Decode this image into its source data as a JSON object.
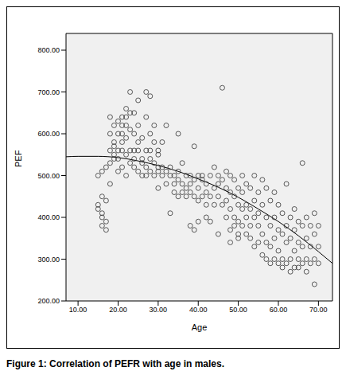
{
  "chart_data": {
    "type": "scatter",
    "title": "Figure 1: Correlation of PEFR with age in males.",
    "x_label": "Age",
    "y_label": "PEF",
    "xlim": [
      7,
      73.5
    ],
    "ylim": [
      200,
      840
    ],
    "xticks": [
      {
        "value": 10,
        "label": "10.00"
      },
      {
        "value": 20,
        "label": "20.00"
      },
      {
        "value": 30,
        "label": "30.00"
      },
      {
        "value": 40,
        "label": "40.00"
      },
      {
        "value": 50,
        "label": "50.00"
      },
      {
        "value": 60,
        "label": "60.00"
      },
      {
        "value": 70,
        "label": "70.00"
      }
    ],
    "yticks": [
      {
        "value": 200,
        "label": "200.00"
      },
      {
        "value": 300,
        "label": "300.00"
      },
      {
        "value": 400,
        "label": "400.00"
      },
      {
        "value": 500,
        "label": "500.00"
      },
      {
        "value": 600,
        "label": "600.00"
      },
      {
        "value": 700,
        "label": "700.00"
      },
      {
        "value": 800,
        "label": "800.00"
      }
    ],
    "grid": false,
    "series": [
      {
        "type": "scatter",
        "marker": "o",
        "color": "#333333",
        "x": [
          15,
          15,
          15,
          16,
          16,
          16,
          16,
          16,
          17,
          17,
          17,
          17,
          18,
          18,
          18,
          18,
          18,
          19,
          19,
          19,
          19,
          19,
          20,
          20,
          20,
          20,
          20,
          21,
          21,
          21,
          21,
          21,
          21,
          22,
          22,
          22,
          22,
          22,
          22,
          23,
          23,
          23,
          23,
          23,
          24,
          24,
          24,
          24,
          24,
          25,
          25,
          25,
          25,
          25,
          26,
          26,
          26,
          26,
          27,
          27,
          27,
          27,
          27,
          28,
          28,
          28,
          28,
          28,
          29,
          29,
          29,
          29,
          30,
          30,
          30,
          30,
          30,
          31,
          31,
          31,
          32,
          32,
          32,
          33,
          33,
          33,
          34,
          34,
          34,
          35,
          35,
          35,
          35,
          36,
          36,
          36,
          37,
          37,
          37,
          38,
          38,
          38,
          38,
          39,
          39,
          39,
          39,
          40,
          40,
          40,
          40,
          41,
          41,
          41,
          42,
          42,
          42,
          42,
          43,
          43,
          43,
          44,
          44,
          44,
          45,
          45,
          45,
          45,
          46,
          46,
          46,
          47,
          47,
          47,
          47,
          48,
          48,
          48,
          48,
          48,
          49,
          49,
          49,
          49,
          50,
          50,
          50,
          50,
          50,
          51,
          51,
          51,
          51,
          52,
          52,
          52,
          52,
          53,
          53,
          53,
          53,
          54,
          54,
          54,
          54,
          55,
          55,
          55,
          55,
          56,
          56,
          56,
          56,
          57,
          57,
          57,
          57,
          58,
          58,
          58,
          58,
          59,
          59,
          59,
          59,
          60,
          60,
          60,
          60,
          61,
          61,
          61,
          61,
          62,
          62,
          62,
          62,
          63,
          63,
          63,
          63,
          64,
          64,
          64,
          64,
          65,
          65,
          65,
          65,
          66,
          66,
          66,
          66,
          67,
          67,
          67,
          67,
          68,
          68,
          68,
          69,
          69,
          69,
          69,
          70,
          70,
          70
        ],
        "values": [
          500,
          430,
          420,
          400,
          380,
          410,
          450,
          510,
          370,
          390,
          440,
          520,
          480,
          600,
          640,
          560,
          530,
          550,
          570,
          620,
          540,
          580,
          560,
          600,
          630,
          510,
          540,
          580,
          620,
          640,
          560,
          520,
          600,
          660,
          640,
          550,
          590,
          620,
          500,
          700,
          650,
          560,
          530,
          610,
          600,
          560,
          540,
          520,
          650,
          680,
          620,
          560,
          510,
          580,
          590,
          540,
          500,
          530,
          700,
          560,
          520,
          640,
          500,
          690,
          600,
          540,
          510,
          560,
          620,
          580,
          500,
          530,
          560,
          520,
          470,
          510,
          550,
          580,
          500,
          520,
          620,
          480,
          510,
          500,
          410,
          520,
          500,
          480,
          460,
          600,
          490,
          450,
          510,
          530,
          480,
          460,
          500,
          450,
          470,
          480,
          380,
          460,
          500,
          570,
          490,
          450,
          370,
          500,
          470,
          440,
          390,
          490,
          450,
          500,
          460,
          480,
          430,
          400,
          500,
          450,
          390,
          520,
          470,
          430,
          500,
          480,
          450,
          360,
          710,
          490,
          430,
          510,
          470,
          440,
          400,
          500,
          460,
          420,
          370,
          340,
          490,
          450,
          400,
          380,
          470,
          430,
          390,
          360,
          350,
          500,
          460,
          420,
          380,
          480,
          430,
          400,
          360,
          470,
          420,
          380,
          350,
          500,
          440,
          400,
          330,
          460,
          410,
          380,
          340,
          490,
          430,
          360,
          310,
          470,
          400,
          340,
          300,
          440,
          380,
          330,
          290,
          460,
          400,
          350,
          300,
          430,
          370,
          320,
          290,
          410,
          360,
          300,
          280,
          480,
          380,
          340,
          290,
          400,
          350,
          300,
          270,
          420,
          370,
          320,
          280,
          390,
          340,
          300,
          280,
          530,
          380,
          330,
          290,
          400,
          350,
          300,
          270,
          380,
          330,
          290,
          410,
          360,
          300,
          240,
          380,
          330,
          290
        ]
      },
      {
        "type": "line",
        "line_style": "solid",
        "color": "#000000",
        "x": [
          7,
          10,
          15,
          20,
          25,
          30,
          35,
          40,
          45,
          50,
          55,
          60,
          65,
          70,
          73.5
        ],
        "values": [
          545,
          546,
          546,
          543,
          535,
          524,
          510,
          492,
          472,
          448,
          420,
          390,
          356,
          318,
          290
        ]
      }
    ]
  }
}
